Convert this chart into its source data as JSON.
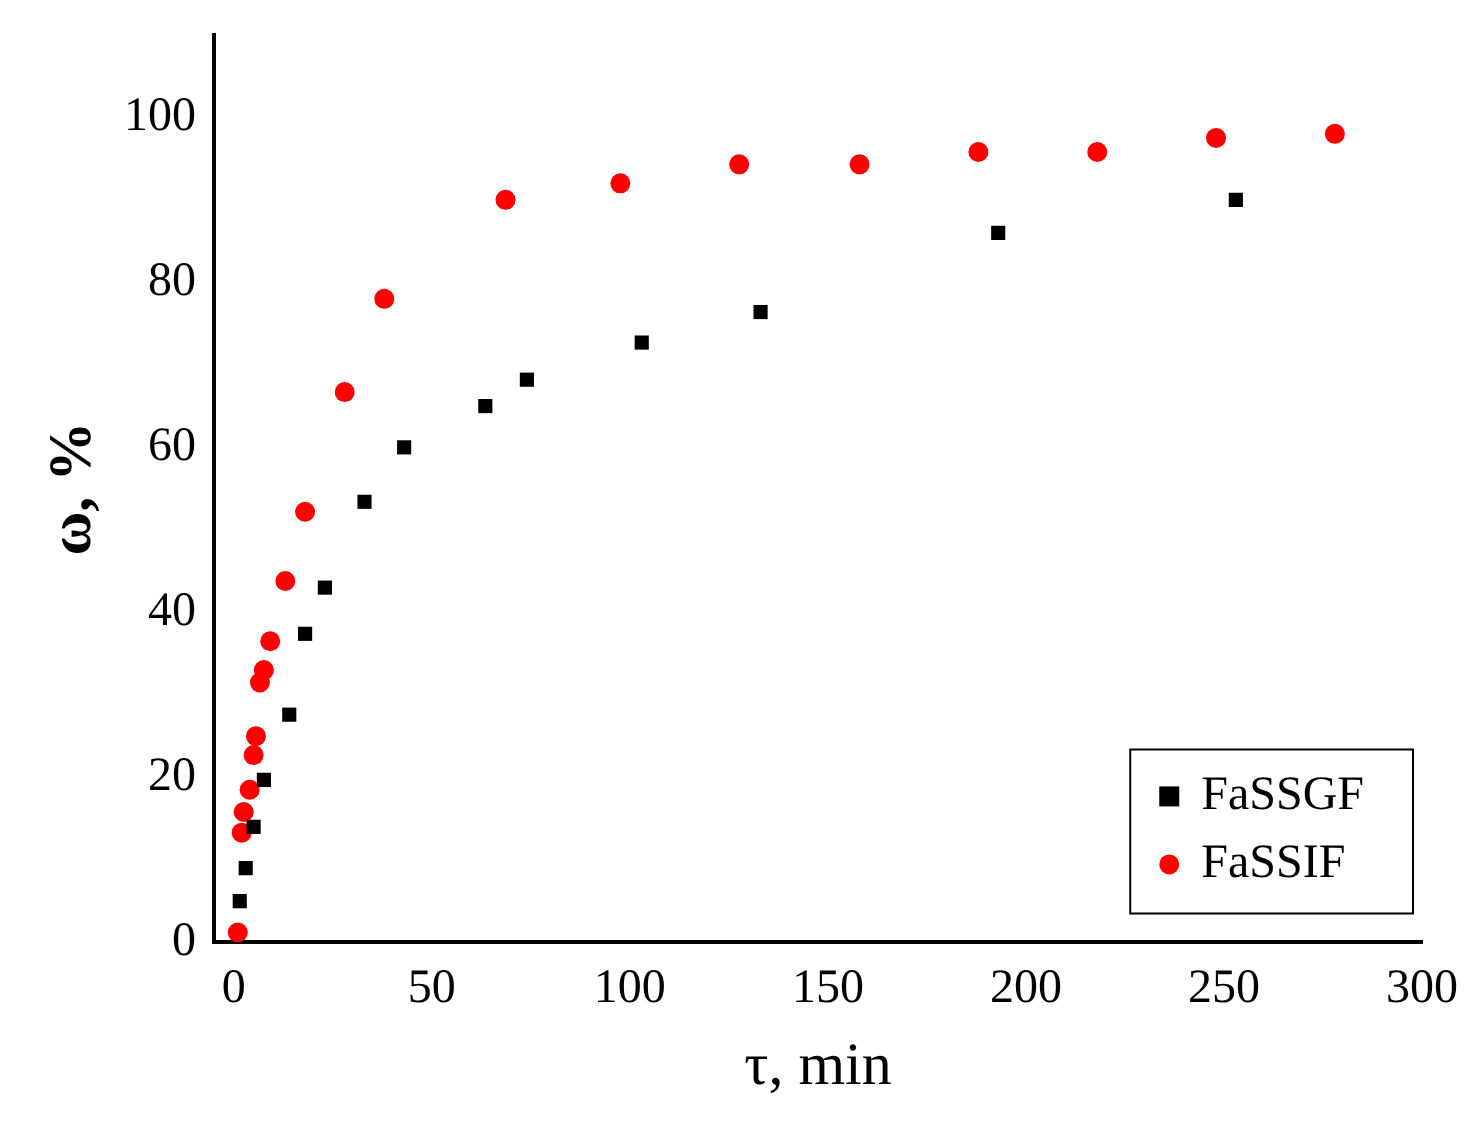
{
  "chart_data": {
    "type": "scatter",
    "xlabel": "τ, min",
    "ylabel": "ω, %",
    "xlim": [
      -5,
      300
    ],
    "ylim": [
      0,
      110
    ],
    "xticks": [
      0,
      50,
      100,
      150,
      200,
      250,
      300
    ],
    "yticks": [
      0,
      20,
      40,
      60,
      80,
      100
    ],
    "grid": false,
    "legend": "bottom right",
    "series": [
      {
        "name": "FaSSGF",
        "color": "#000000",
        "marker": "square",
        "x": [
          1.5,
          3,
          5,
          7.6,
          14,
          18,
          23,
          33,
          43,
          63.5,
          74,
          103,
          133,
          193,
          253
        ],
        "values": [
          5,
          9,
          14,
          19.7,
          27.6,
          37.4,
          43,
          53.4,
          60,
          65,
          68.2,
          72.7,
          76.4,
          86,
          90
        ]
      },
      {
        "name": "FaSSIF",
        "color": "#ff0000",
        "marker": "circle",
        "x": [
          1,
          2,
          2.5,
          4,
          5,
          5.6,
          6.6,
          7.6,
          9.2,
          13,
          18,
          28,
          38,
          68.6,
          97.6,
          127.6,
          158,
          188,
          218,
          248,
          278
        ],
        "values": [
          1.2,
          13.3,
          15.8,
          18.5,
          22.7,
          25,
          31.5,
          33,
          36.5,
          43.8,
          52.2,
          66.7,
          78,
          90,
          92,
          94.3,
          94.3,
          95.8,
          95.8,
          97.5,
          98
        ]
      }
    ]
  }
}
